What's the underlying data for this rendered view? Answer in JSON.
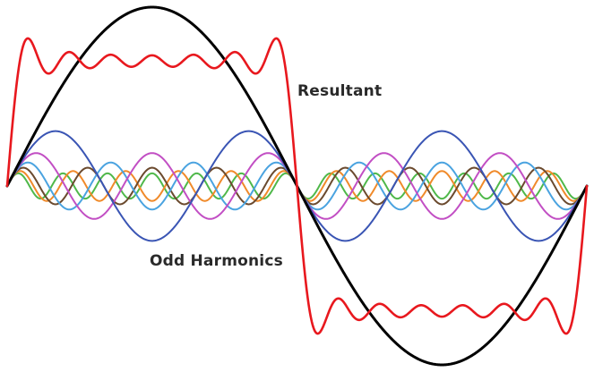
{
  "labels": {
    "resultant": "Resultant",
    "odd_harmonics": "Odd Harmonics"
  },
  "waves": {
    "fundamental": {
      "name": "fundamental-wave",
      "color": "#000000"
    },
    "resultant": {
      "name": "resultant-wave",
      "color": "#e8181e"
    },
    "harmonics": [
      {
        "name": "harmonic-3",
        "order": 3,
        "color": "#3a55b4"
      },
      {
        "name": "harmonic-5",
        "order": 5,
        "color": "#c24fc4"
      },
      {
        "name": "harmonic-7",
        "order": 7,
        "color": "#4aa3e0"
      },
      {
        "name": "harmonic-9",
        "order": 9,
        "color": "#6b4a2e"
      },
      {
        "name": "harmonic-11",
        "order": 11,
        "color": "#f08a2a"
      },
      {
        "name": "harmonic-13",
        "order": 13,
        "color": "#4fb84a"
      }
    ]
  }
}
